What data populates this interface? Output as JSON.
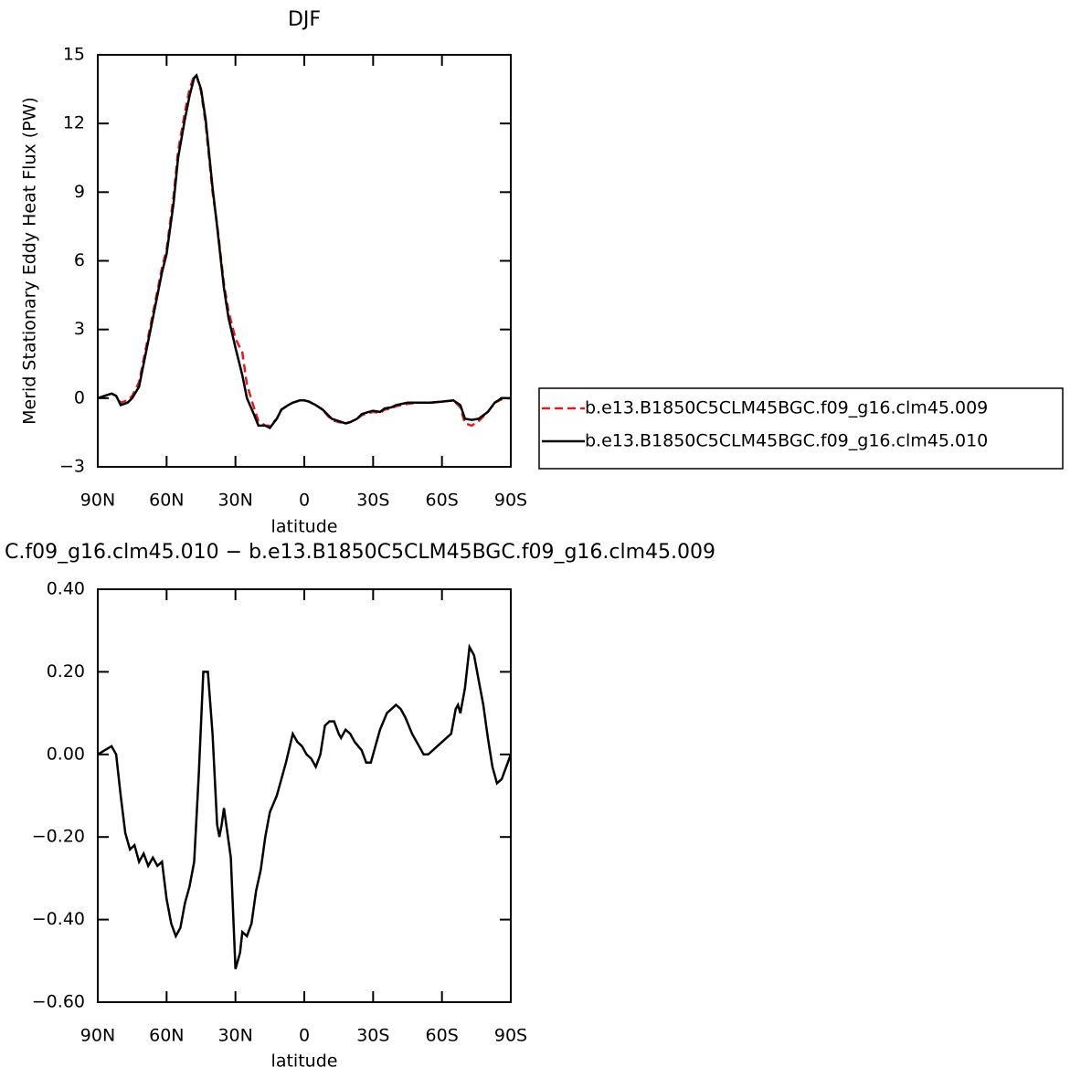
{
  "chart_data": [
    {
      "type": "line",
      "title": "DJF",
      "ylabel": "Merid Stationary Eddy Heat Flux (PW)",
      "xlabel": "latitude",
      "x": [
        90,
        87,
        84,
        82,
        80,
        77,
        75,
        72,
        70,
        67,
        65,
        62,
        60,
        57,
        55,
        52,
        50,
        48,
        47,
        45,
        43,
        40,
        38,
        35,
        33,
        30,
        27,
        25,
        22,
        20,
        17,
        15,
        12,
        10,
        7,
        5,
        2,
        0,
        -2,
        -5,
        -8,
        -10,
        -12,
        -15,
        -18,
        -20,
        -23,
        -25,
        -28,
        -30,
        -33,
        -35,
        -38,
        -40,
        -45,
        -50,
        -55,
        -60,
        -65,
        -68,
        -70,
        -73,
        -76,
        -80,
        -83,
        -86,
        -90
      ],
      "series": [
        {
          "name": "b.e13.B1850C5CLM45BGC.f09_g16.clm45.009",
          "color": "#e41a1c",
          "linestyle": "dashed",
          "values": [
            0,
            0.1,
            0.2,
            0.1,
            -0.2,
            -0.1,
            0.1,
            0.7,
            1.7,
            3.2,
            4.2,
            5.7,
            6.5,
            8.8,
            10.8,
            12.5,
            13.5,
            14.1,
            14.1,
            13.4,
            12.0,
            9.0,
            7.6,
            5.0,
            3.8,
            2.6,
            2.0,
            0.6,
            -0.4,
            -1.0,
            -1.2,
            -1.2,
            -0.9,
            -0.5,
            -0.3,
            -0.2,
            -0.1,
            -0.1,
            -0.15,
            -0.3,
            -0.5,
            -0.75,
            -0.95,
            -1.05,
            -1.1,
            -1.05,
            -0.9,
            -0.75,
            -0.65,
            -0.6,
            -0.65,
            -0.5,
            -0.45,
            -0.35,
            -0.25,
            -0.2,
            -0.2,
            -0.15,
            -0.1,
            -0.4,
            -1.1,
            -1.2,
            -1.0,
            -0.6,
            -0.2,
            -0.05,
            0
          ]
        },
        {
          "name": "b.e13.B1850C5CLM45BGC.f09_g16.clm45.010",
          "color": "#000000",
          "linestyle": "solid",
          "values": [
            0,
            0.1,
            0.2,
            0.1,
            -0.3,
            -0.2,
            0,
            0.5,
            1.5,
            3.0,
            4.0,
            5.5,
            6.3,
            8.5,
            10.5,
            12.2,
            13.2,
            14.0,
            14.1,
            13.5,
            12.2,
            9.2,
            7.5,
            4.8,
            3.5,
            2.2,
            1.0,
            0,
            -0.7,
            -1.2,
            -1.2,
            -1.3,
            -0.9,
            -0.5,
            -0.3,
            -0.2,
            -0.1,
            -0.1,
            -0.15,
            -0.3,
            -0.5,
            -0.7,
            -0.9,
            -1.0,
            -1.1,
            -1.05,
            -0.9,
            -0.7,
            -0.6,
            -0.55,
            -0.6,
            -0.45,
            -0.4,
            -0.3,
            -0.2,
            -0.2,
            -0.2,
            -0.15,
            -0.1,
            -0.3,
            -0.9,
            -0.95,
            -0.9,
            -0.6,
            -0.2,
            0,
            0
          ]
        }
      ],
      "xlim": [
        90,
        -90
      ],
      "xticks": [
        {
          "value": 90,
          "label": "90N"
        },
        {
          "value": 60,
          "label": "60N"
        },
        {
          "value": 30,
          "label": "30N"
        },
        0,
        {
          "value": -30,
          "label": "30S"
        },
        {
          "value": -60,
          "label": "60S"
        },
        {
          "value": -90,
          "label": "90S"
        }
      ],
      "ylim": [
        -3,
        15
      ],
      "yticks": [
        {
          "value": -3,
          "label": "−3"
        },
        0,
        3,
        6,
        9,
        12,
        15
      ],
      "legend": "right"
    },
    {
      "type": "line",
      "title": "C.f09_g16.clm45.010 − b.e13.B1850C5CLM45BGC.f09_g16.clm45.009",
      "xlabel": "latitude",
      "x": [
        90,
        87,
        84,
        82,
        80,
        78,
        76,
        74,
        72,
        70,
        68,
        66,
        64,
        62,
        60,
        58,
        56,
        54,
        52,
        50,
        48,
        46,
        44,
        42,
        40,
        38,
        37,
        36,
        35,
        34,
        32,
        30,
        28,
        27,
        25,
        23,
        21,
        19,
        17,
        15,
        12,
        10,
        8,
        5,
        3,
        1,
        -1,
        -3,
        -5,
        -7,
        -9,
        -11,
        -13,
        -15,
        -16,
        -18,
        -20,
        -22,
        -25,
        -27,
        -29,
        -31,
        -33,
        -36,
        -38,
        -40,
        -42,
        -44,
        -47,
        -50,
        -52,
        -54,
        -56,
        -58,
        -60,
        -62,
        -64,
        -66,
        -67,
        -68,
        -70,
        -72,
        -74,
        -76,
        -78,
        -80,
        -82,
        -84,
        -86,
        -88,
        -90
      ],
      "series": [
        {
          "color": "#000000",
          "linestyle": "solid",
          "values": [
            0,
            0.01,
            0.02,
            0,
            -0.1,
            -0.19,
            -0.23,
            -0.22,
            -0.26,
            -0.24,
            -0.27,
            -0.25,
            -0.27,
            -0.26,
            -0.35,
            -0.41,
            -0.44,
            -0.42,
            -0.36,
            -0.32,
            -0.26,
            -0.05,
            0.2,
            0.2,
            0.05,
            -0.17,
            -0.2,
            -0.17,
            -0.13,
            -0.17,
            -0.25,
            -0.52,
            -0.48,
            -0.43,
            -0.44,
            -0.41,
            -0.33,
            -0.28,
            -0.2,
            -0.14,
            -0.1,
            -0.06,
            -0.02,
            0.05,
            0.03,
            0.02,
            0,
            -0.01,
            -0.03,
            0,
            0.07,
            0.08,
            0.08,
            0.05,
            0.04,
            0.06,
            0.05,
            0.03,
            0.01,
            -0.02,
            -0.02,
            0.02,
            0.06,
            0.1,
            0.11,
            0.12,
            0.11,
            0.09,
            0.05,
            0.02,
            0,
            0,
            0.01,
            0.02,
            0.03,
            0.04,
            0.05,
            0.11,
            0.12,
            0.1,
            0.16,
            0.26,
            0.24,
            0.18,
            0.12,
            0.04,
            -0.03,
            -0.07,
            -0.06,
            -0.03,
            0
          ]
        }
      ],
      "xlim": [
        90,
        -90
      ],
      "xticks": [
        {
          "value": 90,
          "label": "90N"
        },
        {
          "value": 60,
          "label": "60N"
        },
        {
          "value": 30,
          "label": "30N"
        },
        0,
        {
          "value": -30,
          "label": "30S"
        },
        {
          "value": -60,
          "label": "60S"
        },
        {
          "value": -90,
          "label": "90S"
        }
      ],
      "ylim": [
        -0.6,
        0.4
      ],
      "yticks": [
        {
          "value": -0.6,
          "label": "−0.60"
        },
        {
          "value": -0.4,
          "label": "−0.40"
        },
        {
          "value": -0.2,
          "label": "−0.20"
        },
        {
          "value": 0,
          "label": "0.00"
        },
        {
          "value": 0.2,
          "label": "0.20"
        },
        {
          "value": 0.4,
          "label": "0.40"
        }
      ]
    }
  ]
}
